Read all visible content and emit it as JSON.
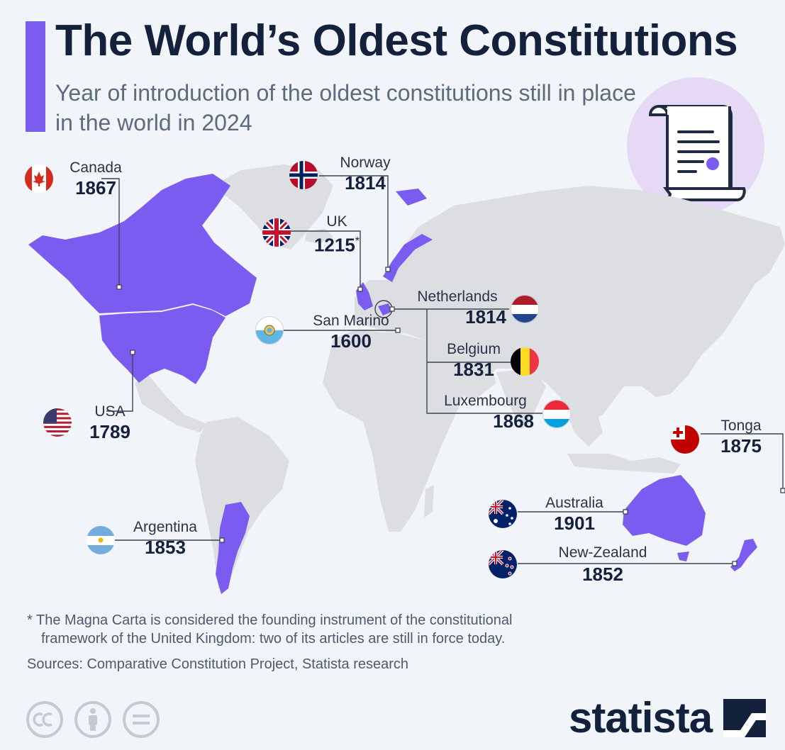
{
  "title": "The World’s Oldest Constitutions",
  "subtitle": "Year of introduction of the oldest constitutions still in place in the world in 2024",
  "colors": {
    "accent": "#7b5cf0",
    "land": "#dcdee2",
    "background": "#f1f4f8",
    "badge": "#e5d9f5"
  },
  "badge_icon": "document-scroll-icon",
  "countries": [
    {
      "id": "canada",
      "name": "Canada",
      "year": "1867",
      "flag": "canada-flag-icon"
    },
    {
      "id": "norway",
      "name": "Norway",
      "year": "1814",
      "flag": "norway-flag-icon"
    },
    {
      "id": "uk",
      "name": "UK",
      "year": "1215",
      "year_mark": "*",
      "flag": "uk-flag-icon"
    },
    {
      "id": "netherlands",
      "name": "Netherlands",
      "year": "1814",
      "flag": "netherlands-flag-icon"
    },
    {
      "id": "san-marino",
      "name": "San Marino",
      "year": "1600",
      "flag": "san-marino-flag-icon"
    },
    {
      "id": "belgium",
      "name": "Belgium",
      "year": "1831",
      "flag": "belgium-flag-icon"
    },
    {
      "id": "luxembourg",
      "name": "Luxembourg",
      "year": "1868",
      "flag": "luxembourg-flag-icon"
    },
    {
      "id": "usa",
      "name": "USA",
      "year": "1789",
      "flag": "usa-flag-icon"
    },
    {
      "id": "tonga",
      "name": "Tonga",
      "year": "1875",
      "flag": "tonga-flag-icon"
    },
    {
      "id": "australia",
      "name": "Australia",
      "year": "1901",
      "flag": "australia-flag-icon"
    },
    {
      "id": "argentina",
      "name": "Argentina",
      "year": "1853",
      "flag": "argentina-flag-icon"
    },
    {
      "id": "new-zealand",
      "name": "New-Zealand",
      "year": "1852",
      "flag": "new-zealand-flag-icon"
    }
  ],
  "footnote": {
    "line1": "* The Magna Carta is considered the founding instrument of the constitutional",
    "line2": "framework of the United Kingdom: two of its articles are still in force today."
  },
  "sources": "Sources: Comparative Constitution Project, Statista research",
  "license_icons": [
    "creative-commons-icon",
    "attribution-icon",
    "no-derivatives-icon"
  ],
  "brand": "statista"
}
